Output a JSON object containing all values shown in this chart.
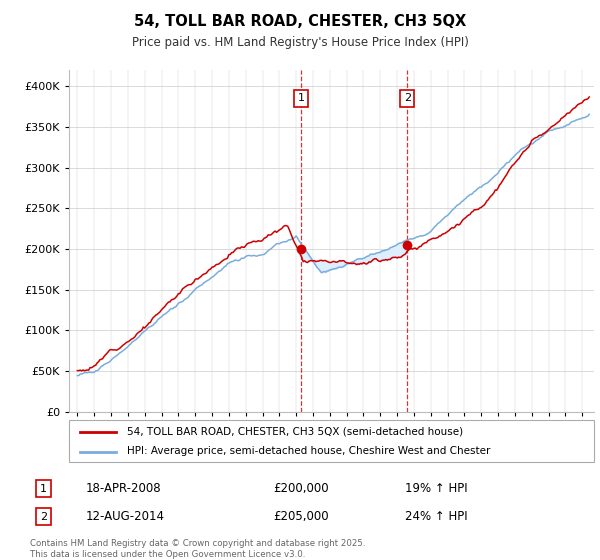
{
  "title": "54, TOLL BAR ROAD, CHESTER, CH3 5QX",
  "subtitle": "Price paid vs. HM Land Registry's House Price Index (HPI)",
  "legend_line1": "54, TOLL BAR ROAD, CHESTER, CH3 5QX (semi-detached house)",
  "legend_line2": "HPI: Average price, semi-detached house, Cheshire West and Chester",
  "annotation1_label": "1",
  "annotation1_date": "18-APR-2008",
  "annotation1_price": "£200,000",
  "annotation1_hpi": "19% ↑ HPI",
  "annotation2_label": "2",
  "annotation2_date": "12-AUG-2014",
  "annotation2_price": "£205,000",
  "annotation2_hpi": "24% ↑ HPI",
  "footer": "Contains HM Land Registry data © Crown copyright and database right 2025.\nThis data is licensed under the Open Government Licence v3.0.",
  "red_color": "#cc0000",
  "blue_color": "#7aaddb",
  "shade_color": "#ddeeff",
  "ylim": [
    0,
    420000
  ],
  "yticks": [
    0,
    50000,
    100000,
    150000,
    200000,
    250000,
    300000,
    350000,
    400000
  ],
  "year_start": 1995,
  "year_end": 2025,
  "sale1_year": 2008.3,
  "sale1_price": 200000,
  "sale2_year": 2014.6,
  "sale2_price": 205000
}
